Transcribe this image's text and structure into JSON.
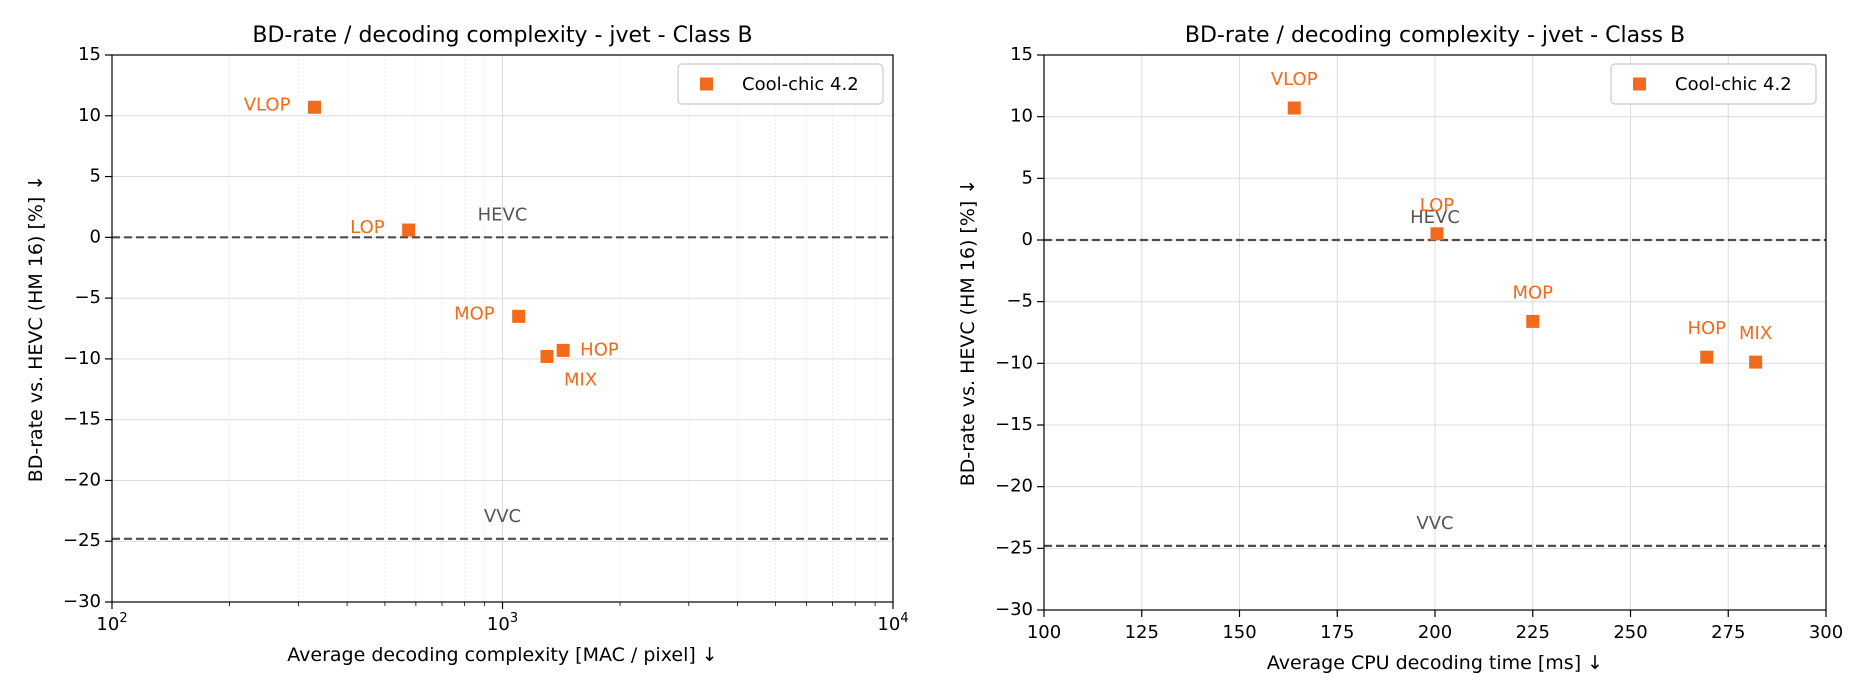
{
  "chart_data": [
    {
      "type": "scatter",
      "title": "BD-rate / decoding complexity - jvet - Class B",
      "xlabel": "Average decoding complexity [MAC / pixel]  ↓",
      "ylabel": "BD-rate vs. HEVC (HM 16) [%]  ↓",
      "xscale": "log",
      "xlim": [
        100,
        10000
      ],
      "ylim": [
        -30,
        15
      ],
      "xticks": [
        100,
        1000,
        10000
      ],
      "xtick_labels": [
        {
          "base": "10",
          "exp": "2"
        },
        {
          "base": "10",
          "exp": "3"
        },
        {
          "base": "10",
          "exp": "4"
        }
      ],
      "yticks": [
        15,
        10,
        5,
        0,
        -5,
        -10,
        -15,
        -20,
        -25,
        -30
      ],
      "ytick_labels": [
        "15",
        "10",
        "5",
        "0",
        "−5",
        "−10",
        "−15",
        "−20",
        "−25",
        "−30"
      ],
      "grid": true,
      "legend_position": "top-right",
      "series": [
        {
          "name": "Cool-chic 4.2",
          "color": "#f26a1b",
          "marker": "square",
          "points": [
            {
              "label": "VLOP",
              "x": 330,
              "y": 10.7,
              "label_pos": "left"
            },
            {
              "label": "LOP",
              "x": 575,
              "y": 0.6,
              "label_pos": "left"
            },
            {
              "label": "MOP",
              "x": 1100,
              "y": -6.5,
              "label_pos": "left"
            },
            {
              "label": "HOP",
              "x": 1430,
              "y": -9.3,
              "label_pos": "right"
            },
            {
              "label": "MIX",
              "x": 1300,
              "y": -9.8,
              "label_pos": "below-right"
            }
          ]
        }
      ],
      "reference_lines": [
        {
          "label": "HEVC",
          "y": 0
        },
        {
          "label": "VVC",
          "y": -24.8
        }
      ]
    },
    {
      "type": "scatter",
      "title": "BD-rate / decoding complexity - jvet - Class B",
      "xlabel": "Average CPU decoding time [ms]  ↓",
      "ylabel": "BD-rate vs. HEVC (HM 16) [%]  ↓",
      "xscale": "linear",
      "xlim": [
        100,
        300
      ],
      "ylim": [
        -30,
        15
      ],
      "xticks": [
        100,
        125,
        150,
        175,
        200,
        225,
        250,
        275,
        300
      ],
      "xtick_labels": [
        "100",
        "125",
        "150",
        "175",
        "200",
        "225",
        "250",
        "275",
        "300"
      ],
      "yticks": [
        15,
        10,
        5,
        0,
        -5,
        -10,
        -15,
        -20,
        -25,
        -30
      ],
      "ytick_labels": [
        "15",
        "10",
        "5",
        "0",
        "−5",
        "−10",
        "−15",
        "−20",
        "−25",
        "−30"
      ],
      "grid": true,
      "legend_position": "top-right",
      "series": [
        {
          "name": "Cool-chic 4.2",
          "color": "#f26a1b",
          "marker": "square",
          "points": [
            {
              "label": "VLOP",
              "x": 164,
              "y": 10.7,
              "label_pos": "above"
            },
            {
              "label": "LOP",
              "x": 200.5,
              "y": 0.5,
              "label_pos": "above"
            },
            {
              "label": "MOP",
              "x": 225,
              "y": -6.6,
              "label_pos": "above"
            },
            {
              "label": "HOP",
              "x": 269.5,
              "y": -9.5,
              "label_pos": "above"
            },
            {
              "label": "MIX",
              "x": 282,
              "y": -9.9,
              "label_pos": "above"
            }
          ]
        }
      ],
      "reference_lines": [
        {
          "label": "HEVC",
          "y": 0
        },
        {
          "label": "VVC",
          "y": -24.8
        }
      ]
    }
  ]
}
